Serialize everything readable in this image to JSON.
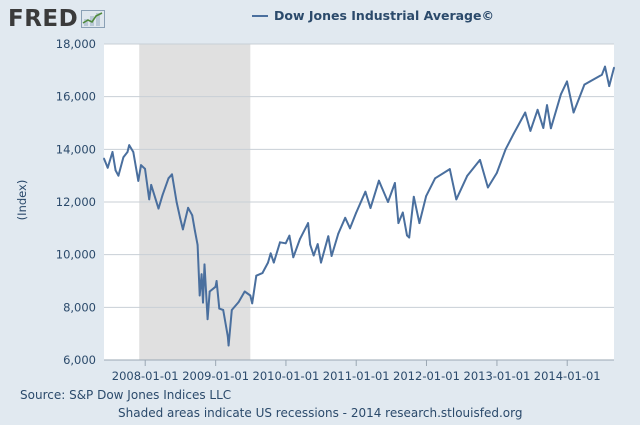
{
  "logo": {
    "text": "FRED",
    "mark_icon": "line-graph-icon"
  },
  "colors": {
    "background": "#e1e9f0",
    "plot_bg": "#ffffff",
    "recession": "#e0e0e0",
    "series": "#4a6f9e",
    "grid": "#c8cfd6",
    "text": "#2b4a6b"
  },
  "chart_data": {
    "type": "line",
    "title": "Dow Jones Industrial Average©",
    "xlabel": "",
    "ylabel": "(Index)",
    "ylim": [
      6000,
      18000
    ],
    "xlim": [
      "2007-06-01",
      "2014-09-01"
    ],
    "yticks": [
      6000,
      8000,
      10000,
      12000,
      14000,
      16000,
      18000
    ],
    "ytick_labels": [
      "6,000",
      "8,000",
      "10,000",
      "12,000",
      "14,000",
      "16,000",
      "18,000"
    ],
    "xticks": [
      "2008-01-01",
      "2009-01-01",
      "2010-01-01",
      "2011-01-01",
      "2012-01-01",
      "2013-01-01",
      "2014-01-01"
    ],
    "recessions": [
      {
        "start": "2007-12-01",
        "end": "2009-06-30"
      }
    ],
    "grid": true,
    "legend": "top-center",
    "series": [
      {
        "name": "Dow Jones Industrial Average©",
        "x": [
          "2007-06-01",
          "2007-06-20",
          "2007-07-15",
          "2007-07-31",
          "2007-08-15",
          "2007-09-10",
          "2007-10-01",
          "2007-10-10",
          "2007-10-31",
          "2007-11-26",
          "2007-12-10",
          "2007-12-31",
          "2008-01-22",
          "2008-02-01",
          "2008-03-10",
          "2008-03-31",
          "2008-05-01",
          "2008-05-19",
          "2008-06-12",
          "2008-07-01",
          "2008-07-15",
          "2008-08-11",
          "2008-09-01",
          "2008-09-15",
          "2008-09-29",
          "2008-10-10",
          "2008-10-20",
          "2008-10-27",
          "2008-11-04",
          "2008-11-20",
          "2008-12-01",
          "2008-12-31",
          "2009-01-06",
          "2009-01-20",
          "2009-02-09",
          "2009-03-05",
          "2009-03-09",
          "2009-03-26",
          "2009-04-30",
          "2009-06-01",
          "2009-06-30",
          "2009-07-10",
          "2009-07-31",
          "2009-09-01",
          "2009-09-30",
          "2009-10-14",
          "2009-10-30",
          "2009-12-01",
          "2009-12-31",
          "2010-01-19",
          "2010-02-08",
          "2010-03-15",
          "2010-04-26",
          "2010-05-07",
          "2010-05-25",
          "2010-06-15",
          "2010-07-02",
          "2010-08-09",
          "2010-08-26",
          "2010-09-30",
          "2010-11-05",
          "2010-11-30",
          "2010-12-31",
          "2011-02-18",
          "2011-03-16",
          "2011-04-29",
          "2011-06-15",
          "2011-07-21",
          "2011-08-08",
          "2011-08-31",
          "2011-09-22",
          "2011-10-03",
          "2011-10-27",
          "2011-11-25",
          "2011-12-30",
          "2012-02-15",
          "2012-05-01",
          "2012-06-04",
          "2012-07-31",
          "2012-10-05",
          "2012-11-15",
          "2012-12-31",
          "2013-02-15",
          "2013-03-28",
          "2013-05-28",
          "2013-06-24",
          "2013-07-31",
          "2013-08-30",
          "2013-09-18",
          "2013-10-08",
          "2013-11-29",
          "2013-12-31",
          "2014-02-03",
          "2014-03-31",
          "2014-04-30",
          "2014-06-30",
          "2014-07-16",
          "2014-08-07",
          "2014-09-01"
        ],
        "values": [
          13650,
          13300,
          13900,
          13200,
          13000,
          13700,
          13900,
          14160,
          13900,
          12800,
          13400,
          13260,
          12100,
          12650,
          11750,
          12260,
          12900,
          13050,
          12000,
          11380,
          10960,
          11780,
          11500,
          10910,
          10370,
          8450,
          9260,
          8180,
          9630,
          7550,
          8600,
          8780,
          9000,
          7950,
          7900,
          6900,
          6550,
          7900,
          8200,
          8600,
          8450,
          8150,
          9200,
          9300,
          9700,
          10050,
          9700,
          10470,
          10430,
          10720,
          9900,
          10600,
          11200,
          10380,
          9970,
          10400,
          9700,
          10700,
          9950,
          10800,
          11400,
          11000,
          11580,
          12390,
          11770,
          12810,
          12000,
          12720,
          11200,
          11600,
          10730,
          10650,
          12200,
          11200,
          12220,
          12900,
          13250,
          12100,
          13000,
          13600,
          12550,
          13100,
          14000,
          14580,
          15400,
          14700,
          15500,
          14810,
          15680,
          14800,
          16090,
          16580,
          15400,
          16460,
          16580,
          16830,
          17140,
          16400,
          17100
        ]
      }
    ]
  },
  "source_text": "Source: S&P Dow Jones Indices LLC",
  "footer_text": "Shaded areas indicate US recessions - 2014 research.stlouisfed.org"
}
